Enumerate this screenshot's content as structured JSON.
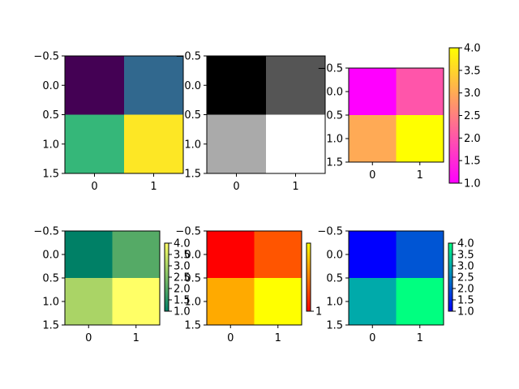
{
  "figure": {
    "background": "#ffffff"
  },
  "chart_data": [
    {
      "type": "heatmap",
      "colormap": "viridis",
      "values": [
        [
          1,
          2
        ],
        [
          3,
          4
        ]
      ],
      "cell_colors": [
        [
          "#440154",
          "#31688e"
        ],
        [
          "#35b779",
          "#fde725"
        ]
      ],
      "x_ticks": [
        "0",
        "1"
      ],
      "y_ticks": [
        "−0.5",
        "0.0",
        "0.5",
        "1.0",
        "1.5"
      ],
      "colorbar": null
    },
    {
      "type": "heatmap",
      "colormap": "gray",
      "values": [
        [
          1,
          2
        ],
        [
          3,
          4
        ]
      ],
      "cell_colors": [
        [
          "#000000",
          "#555555"
        ],
        [
          "#aaaaaa",
          "#ffffff"
        ]
      ],
      "x_ticks": [
        "0",
        "1"
      ],
      "y_ticks": [
        "−0.5",
        "0.0",
        "0.5",
        "1.0",
        "1.5"
      ],
      "colorbar": null
    },
    {
      "type": "heatmap",
      "colormap": "spring",
      "values": [
        [
          1,
          2
        ],
        [
          3,
          4
        ]
      ],
      "cell_colors": [
        [
          "#ff00ff",
          "#ff55aa"
        ],
        [
          "#ffaa55",
          "#ffff00"
        ]
      ],
      "x_ticks": [
        "0",
        "1"
      ],
      "y_ticks": [
        "−0.5",
        "0.0",
        "0.5",
        "1.0",
        "1.5"
      ],
      "colorbar": {
        "range": [
          1.0,
          4.0
        ],
        "ticks": [
          "1.0",
          "1.5",
          "2.0",
          "2.5",
          "3.0",
          "3.5",
          "4.0"
        ],
        "stops": [
          "#ff00ff",
          "#ffff00"
        ]
      }
    },
    {
      "type": "heatmap",
      "colormap": "summer",
      "values": [
        [
          1,
          2
        ],
        [
          3,
          4
        ]
      ],
      "cell_colors": [
        [
          "#008066",
          "#55aa66"
        ],
        [
          "#aad466",
          "#ffff66"
        ]
      ],
      "x_ticks": [
        "0",
        "1"
      ],
      "y_ticks": [
        "−0.5",
        "0.0",
        "0.5",
        "1.0",
        "1.5"
      ],
      "colorbar": {
        "range": [
          1.0,
          4.0
        ],
        "ticks": [
          "1.0",
          "1.5",
          "2.0",
          "2.5",
          "3.0",
          "3.5",
          "4.0"
        ],
        "stops": [
          "#008066",
          "#ffff66"
        ]
      }
    },
    {
      "type": "heatmap",
      "colormap": "autumn",
      "values": [
        [
          1,
          2
        ],
        [
          3,
          4
        ]
      ],
      "cell_colors": [
        [
          "#ff0000",
          "#ff5500"
        ],
        [
          "#ffaa00",
          "#ffff00"
        ]
      ],
      "x_ticks": [
        "0",
        "1"
      ],
      "y_ticks": [
        "−0.5",
        "0.0",
        "0.5",
        "1.0",
        "1.5"
      ],
      "colorbar": {
        "range": [
          1.0,
          4.0
        ],
        "ticks": [
          "1"
        ],
        "stops": [
          "#ff0000",
          "#ffff00"
        ]
      }
    },
    {
      "type": "heatmap",
      "colormap": "winter",
      "values": [
        [
          1,
          2
        ],
        [
          3,
          4
        ]
      ],
      "cell_colors": [
        [
          "#0000ff",
          "#0055d4"
        ],
        [
          "#00aaaa",
          "#00ff80"
        ]
      ],
      "x_ticks": [
        "0",
        "1"
      ],
      "y_ticks": [
        "−0.5",
        "0.0",
        "0.5",
        "1.0",
        "1.5"
      ],
      "colorbar": {
        "range": [
          1.0,
          4.0
        ],
        "ticks": [
          "1.0",
          "1.5",
          "2.0",
          "2.5",
          "3.0",
          "3.5",
          "4.0"
        ],
        "stops": [
          "#0000ff",
          "#00ff80"
        ]
      }
    }
  ]
}
